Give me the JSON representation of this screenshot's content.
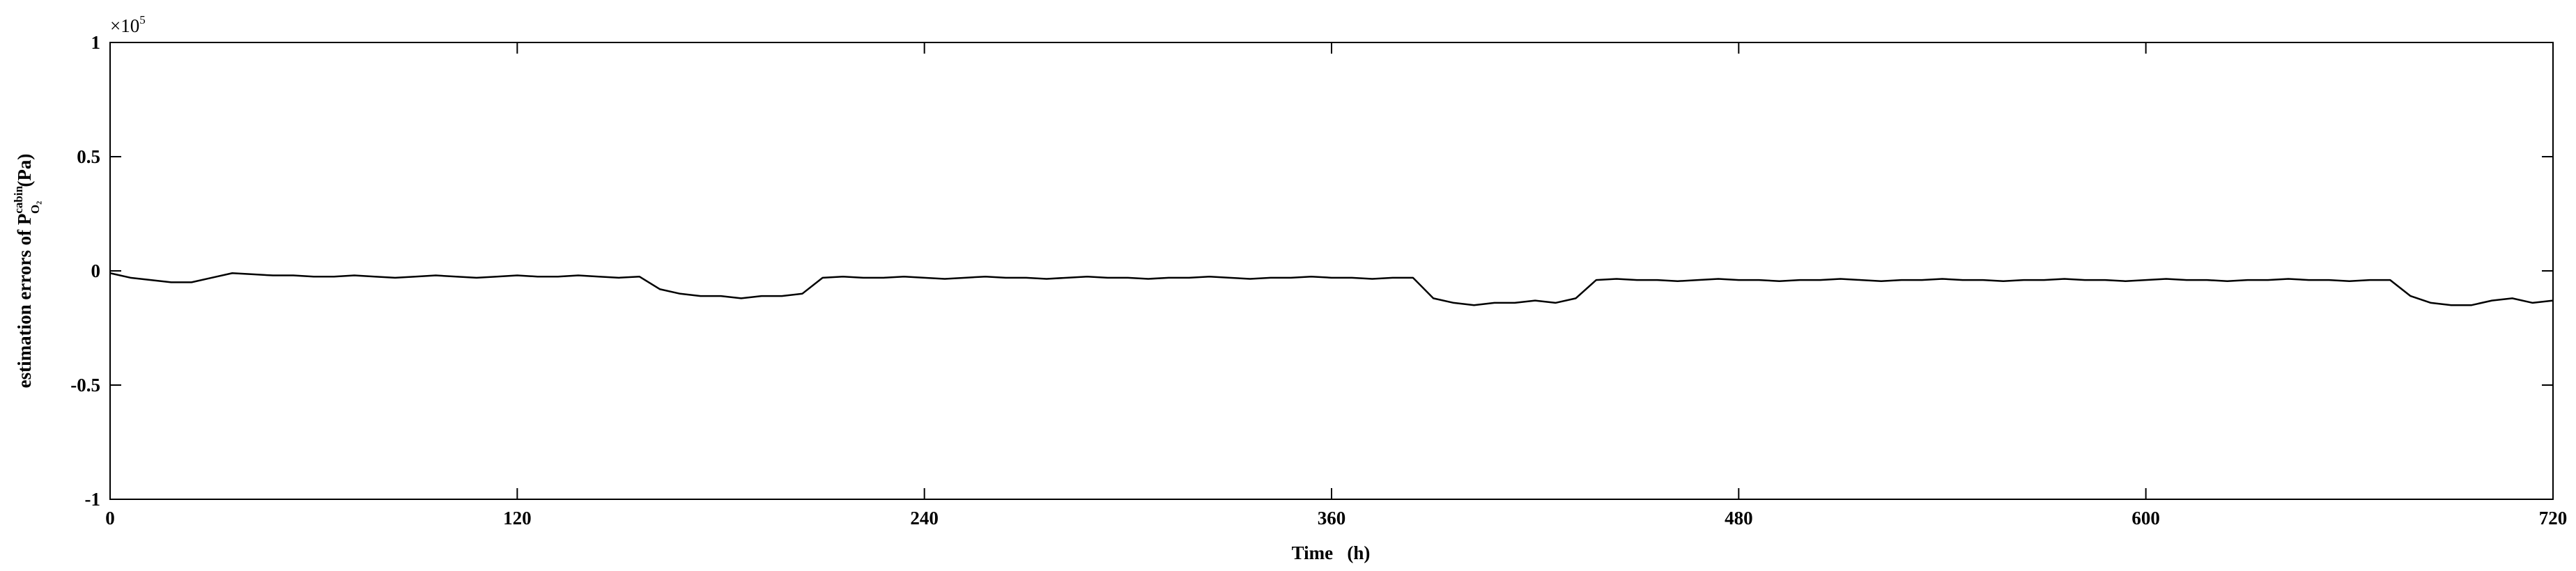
{
  "chart_data": {
    "type": "line",
    "xlabel": "Time   (h)",
    "ylabel": {
      "text": "estimation errors of P",
      "superscript": "cabin",
      "subscript": "O₂",
      "unit": "(Pa)"
    },
    "y_multiplier": {
      "base": "×10",
      "exponent": "5"
    },
    "xlim": [
      0,
      720
    ],
    "ylim": [
      -1,
      1
    ],
    "xticks": [
      0,
      120,
      240,
      360,
      480,
      600,
      720
    ],
    "yticks": [
      -1,
      -0.5,
      0,
      0.5,
      1
    ],
    "grid": false,
    "x": [
      0,
      6,
      12,
      18,
      24,
      30,
      36,
      42,
      48,
      54,
      60,
      66,
      72,
      78,
      84,
      90,
      96,
      102,
      108,
      114,
      120,
      126,
      132,
      138,
      144,
      150,
      156,
      162,
      168,
      174,
      180,
      186,
      192,
      198,
      204,
      210,
      216,
      222,
      228,
      234,
      240,
      246,
      252,
      258,
      264,
      270,
      276,
      282,
      288,
      294,
      300,
      306,
      312,
      318,
      324,
      330,
      336,
      342,
      348,
      354,
      360,
      366,
      372,
      378,
      384,
      390,
      396,
      402,
      408,
      414,
      420,
      426,
      432,
      438,
      444,
      450,
      456,
      462,
      468,
      474,
      480,
      486,
      492,
      498,
      504,
      510,
      516,
      522,
      528,
      534,
      540,
      546,
      552,
      558,
      564,
      570,
      576,
      582,
      588,
      594,
      600,
      606,
      612,
      618,
      624,
      630,
      636,
      642,
      648,
      654,
      660,
      666,
      672,
      678,
      684,
      690,
      696,
      702,
      708,
      714,
      720
    ],
    "series": [
      {
        "name": "estimation error",
        "color": "#000000",
        "values": [
          -0.01,
          -0.03,
          -0.04,
          -0.05,
          -0.05,
          -0.03,
          -0.01,
          -0.015,
          -0.02,
          -0.02,
          -0.025,
          -0.025,
          -0.02,
          -0.025,
          -0.03,
          -0.025,
          -0.02,
          -0.025,
          -0.03,
          -0.025,
          -0.02,
          -0.025,
          -0.025,
          -0.02,
          -0.025,
          -0.03,
          -0.025,
          -0.08,
          -0.1,
          -0.11,
          -0.11,
          -0.12,
          -0.11,
          -0.11,
          -0.1,
          -0.03,
          -0.025,
          -0.03,
          -0.03,
          -0.025,
          -0.03,
          -0.035,
          -0.03,
          -0.025,
          -0.03,
          -0.03,
          -0.035,
          -0.03,
          -0.025,
          -0.03,
          -0.03,
          -0.035,
          -0.03,
          -0.03,
          -0.025,
          -0.03,
          -0.035,
          -0.03,
          -0.03,
          -0.025,
          -0.03,
          -0.03,
          -0.035,
          -0.03,
          -0.03,
          -0.12,
          -0.14,
          -0.15,
          -0.14,
          -0.14,
          -0.13,
          -0.14,
          -0.12,
          -0.04,
          -0.035,
          -0.04,
          -0.04,
          -0.045,
          -0.04,
          -0.035,
          -0.04,
          -0.04,
          -0.045,
          -0.04,
          -0.04,
          -0.035,
          -0.04,
          -0.045,
          -0.04,
          -0.04,
          -0.035,
          -0.04,
          -0.04,
          -0.045,
          -0.04,
          -0.04,
          -0.035,
          -0.04,
          -0.04,
          -0.045,
          -0.04,
          -0.035,
          -0.04,
          -0.04,
          -0.045,
          -0.04,
          -0.04,
          -0.035,
          -0.04,
          -0.04,
          -0.045,
          -0.04,
          -0.04,
          -0.11,
          -0.14,
          -0.15,
          -0.15,
          -0.13,
          -0.12,
          -0.14,
          -0.13
        ]
      }
    ]
  }
}
